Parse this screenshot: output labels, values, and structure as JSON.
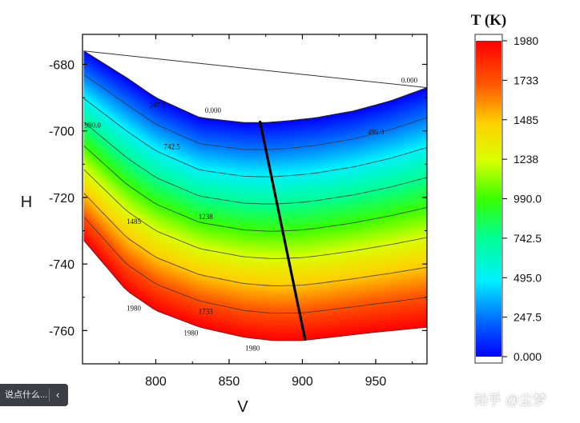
{
  "chart_data": {
    "type": "contour",
    "xlabel": "V",
    "ylabel": "H",
    "xlim": [
      750,
      985
    ],
    "ylim": [
      -770,
      -671
    ],
    "x_ticks": [
      800,
      850,
      900,
      950
    ],
    "y_ticks": [
      -680,
      -700,
      -720,
      -740,
      -760
    ],
    "colorbar": {
      "title": "T (K)",
      "min": 0,
      "max": 1980,
      "ticks": [
        "1980",
        "1733",
        "1485",
        "1238",
        "990.0",
        "742.5",
        "495.0",
        "247.5",
        "0.000"
      ]
    },
    "boundary": {
      "top_v": [
        751,
        780,
        800,
        830,
        860,
        875,
        890,
        910,
        935,
        960,
        985
      ],
      "top_h": [
        -676,
        -684,
        -690,
        -696,
        -697.5,
        -697.5,
        -697,
        -696,
        -694,
        -691,
        -687
      ],
      "bottom_v": [
        751,
        780,
        800,
        830,
        860,
        880,
        900,
        920,
        950,
        985
      ],
      "bottom_h": [
        -733,
        -748,
        -754,
        -759,
        -762,
        -763,
        -763,
        -762,
        -760.5,
        -759
      ]
    },
    "hull_line": {
      "v": [
        751,
        985
      ],
      "h": [
        -676,
        -687
      ]
    },
    "path_line": {
      "v": [
        871,
        902
      ],
      "h": [
        -697,
        -763
      ]
    },
    "contour_levels": [
      247.5,
      495.0,
      742.5,
      990.0,
      1238,
      1485,
      1733,
      1980
    ],
    "contour_labels": [
      {
        "text": "0.000",
        "v": 973,
        "h": -685.5
      },
      {
        "text": "0.000",
        "v": 839,
        "h": -694.5
      },
      {
        "text": "247.5",
        "v": 801,
        "h": -693
      },
      {
        "text": "495.0",
        "v": 950,
        "h": -701
      },
      {
        "text": "990.0",
        "v": 757,
        "h": -699
      },
      {
        "text": "742.5",
        "v": 811,
        "h": -705.5
      },
      {
        "text": "1238",
        "v": 834,
        "h": -726.5
      },
      {
        "text": "1485",
        "v": 785,
        "h": -728
      },
      {
        "text": "1733",
        "v": 834,
        "h": -755
      },
      {
        "text": "1980",
        "v": 785,
        "h": -754
      },
      {
        "text": "1980",
        "v": 824,
        "h": -761.5
      },
      {
        "text": "1980",
        "v": 866,
        "h": -766
      }
    ]
  },
  "ui": {
    "toast_text": "说点什么...",
    "toast_chevron": "‹",
    "watermark": "知乎 @尘梦"
  }
}
